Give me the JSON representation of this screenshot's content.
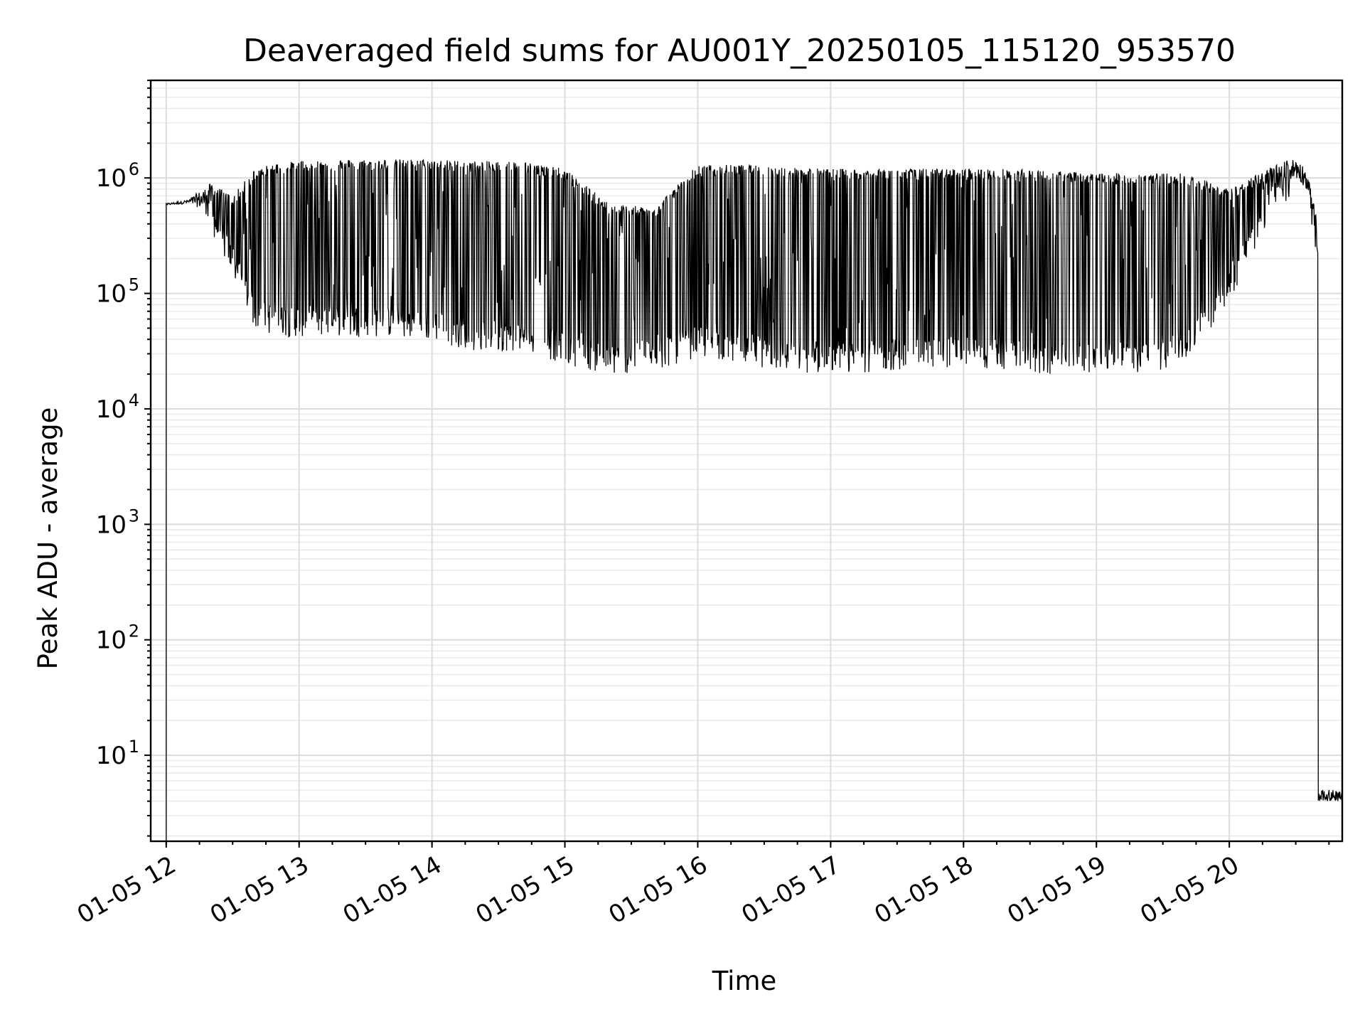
{
  "chart_data": {
    "type": "line",
    "title": "Deaveraged field sums for AU001Y_20250105_115120_953570",
    "xlabel": "Time",
    "ylabel": "Peak ADU - average",
    "yscale": "log",
    "xlim": [
      "2025-01-05T11:53",
      "2025-01-05T20:51"
    ],
    "ylim": [
      1.8,
      7000000
    ],
    "grid": true,
    "line_color": "#000000",
    "x_ticks": [
      {
        "t": "2025-01-05T12:00",
        "label": "01-05 12"
      },
      {
        "t": "2025-01-05T13:00",
        "label": "01-05 13"
      },
      {
        "t": "2025-01-05T14:00",
        "label": "01-05 14"
      },
      {
        "t": "2025-01-05T15:00",
        "label": "01-05 15"
      },
      {
        "t": "2025-01-05T16:00",
        "label": "01-05 16"
      },
      {
        "t": "2025-01-05T17:00",
        "label": "01-05 17"
      },
      {
        "t": "2025-01-05T18:00",
        "label": "01-05 18"
      },
      {
        "t": "2025-01-05T19:00",
        "label": "01-05 19"
      },
      {
        "t": "2025-01-05T20:00",
        "label": "01-05 20"
      }
    ],
    "y_ticks": [
      {
        "value": 10,
        "base": "10",
        "exp": "1"
      },
      {
        "value": 100,
        "base": "10",
        "exp": "2"
      },
      {
        "value": 1000,
        "base": "10",
        "exp": "3"
      },
      {
        "value": 10000,
        "base": "10",
        "exp": "4"
      },
      {
        "value": 100000,
        "base": "10",
        "exp": "5"
      },
      {
        "value": 1000000,
        "base": "10",
        "exp": "6"
      }
    ],
    "series": [
      {
        "envelope": {
          "x": [
            "2025-01-05T12:00",
            "2025-01-05T12:10",
            "2025-01-05T12:20",
            "2025-01-05T12:30",
            "2025-01-05T12:40",
            "2025-01-05T12:50",
            "2025-01-05T13:00",
            "2025-01-05T13:20",
            "2025-01-05T13:40",
            "2025-01-05T14:00",
            "2025-01-05T14:20",
            "2025-01-05T14:40",
            "2025-01-05T15:00",
            "2025-01-05T15:20",
            "2025-01-05T15:40",
            "2025-01-05T16:00",
            "2025-01-05T16:20",
            "2025-01-05T16:40",
            "2025-01-05T17:00",
            "2025-01-05T17:20",
            "2025-01-05T17:40",
            "2025-01-05T18:00",
            "2025-01-05T18:20",
            "2025-01-05T18:40",
            "2025-01-05T19:00",
            "2025-01-05T19:20",
            "2025-01-05T19:40",
            "2025-01-05T20:00",
            "2025-01-05T20:10",
            "2025-01-05T20:20",
            "2025-01-05T20:30",
            "2025-01-05T20:35",
            "2025-01-05T20:40",
            "2025-01-05T20:50"
          ],
          "upper": [
            600000,
            650000,
            900000,
            700000,
            1200000,
            1350000,
            1400000,
            1450000,
            1450000,
            1450000,
            1400000,
            1400000,
            1200000,
            600000,
            550000,
            1300000,
            1300000,
            1250000,
            1200000,
            1200000,
            1200000,
            1200000,
            1200000,
            1150000,
            1100000,
            1100000,
            1100000,
            800000,
            1000000,
            1300000,
            1500000,
            1200000,
            400000,
            4
          ],
          "lower": [
            580000,
            600000,
            500000,
            200000,
            70000,
            60000,
            60000,
            60000,
            60000,
            55000,
            45000,
            45000,
            35000,
            28000,
            30000,
            40000,
            35000,
            30000,
            28000,
            30000,
            32000,
            33000,
            30000,
            28000,
            30000,
            28000,
            35000,
            120000,
            300000,
            700000,
            1000000,
            800000,
            200000,
            4
          ]
        }
      }
    ]
  }
}
